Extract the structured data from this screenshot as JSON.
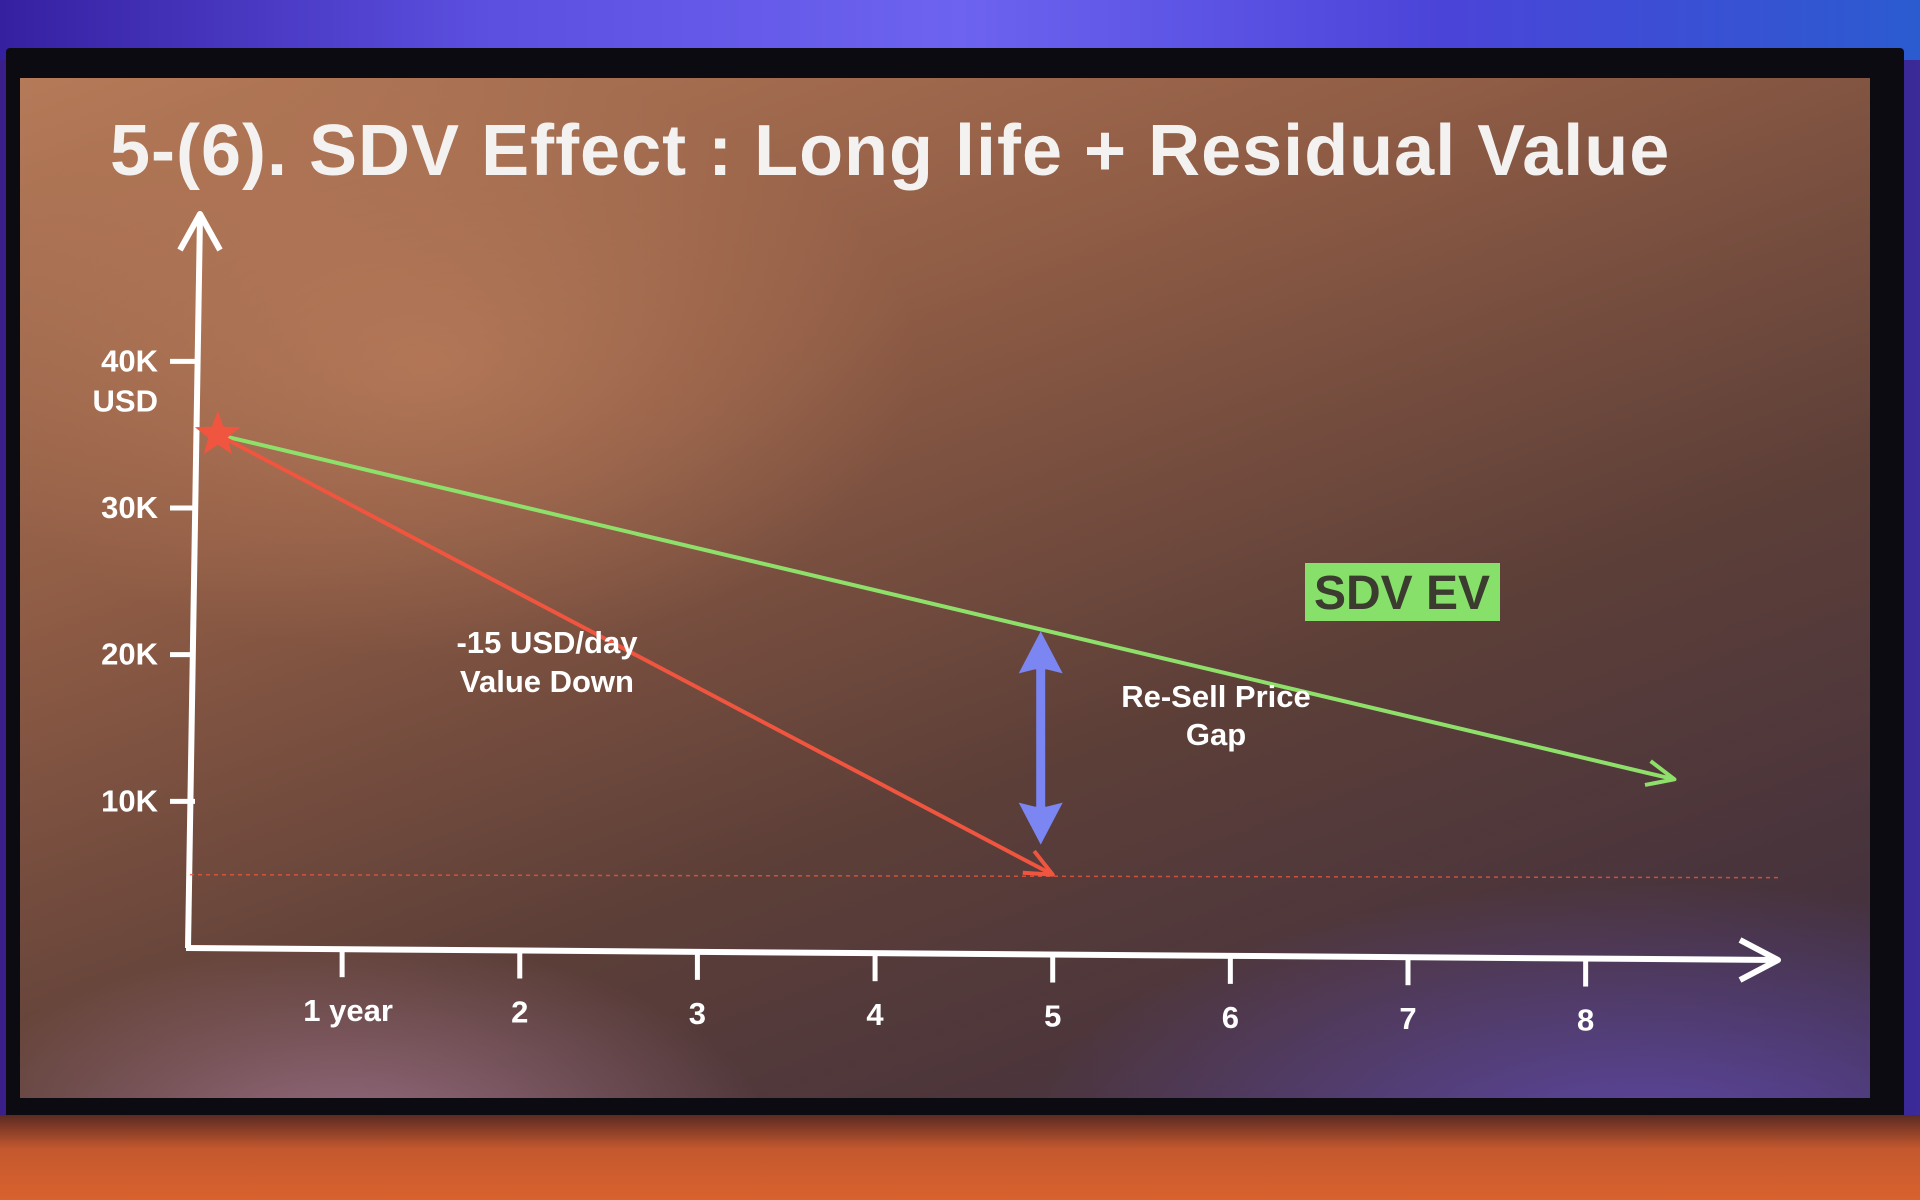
{
  "slide": {
    "title": "5-(6). SDV Effect : Long life + Residual Value"
  },
  "chart_data": {
    "type": "line",
    "title": "5-(6). SDV Effect : Long life + Residual Value",
    "ylabel": "USD",
    "y_ticks": [
      "10K",
      "20K",
      "30K",
      "40K"
    ],
    "y_tick_values": [
      10000,
      20000,
      30000,
      40000
    ],
    "y_unit_label": "USD",
    "x_ticks": [
      "1 year",
      "2",
      "3",
      "4",
      "5",
      "6",
      "7",
      "8"
    ],
    "x_tick_values": [
      1,
      2,
      3,
      4,
      5,
      6,
      7,
      8
    ],
    "xlim": [
      0.2,
      8.7
    ],
    "ylim": [
      0,
      45000
    ],
    "grid": false,
    "series": [
      {
        "name": "SDV EV",
        "color": "#8ee06b",
        "x": [
          0.3,
          8.5
        ],
        "y": [
          35000,
          11500
        ]
      },
      {
        "name": "",
        "color": "#f0553f",
        "x": [
          0.3,
          5.0
        ],
        "y": [
          35000,
          5000
        ]
      }
    ],
    "start_marker": {
      "x": 0.3,
      "y": 35000,
      "shape": "star",
      "color": "#f0553f"
    },
    "reference_line": {
      "y": 5000,
      "style": "dotted",
      "color": "#f0553f"
    },
    "annotations": {
      "slope_label_line1": "-15 USD/day",
      "slope_label_line2": "Value Down",
      "gap_label_line1": "Re-Sell Price",
      "gap_label_line2": "Gap",
      "gap_arrow": {
        "x": 5.0,
        "y_from": 5000,
        "y_to": 22000,
        "color": "#7b86f2"
      },
      "series_label": "SDV EV"
    }
  }
}
